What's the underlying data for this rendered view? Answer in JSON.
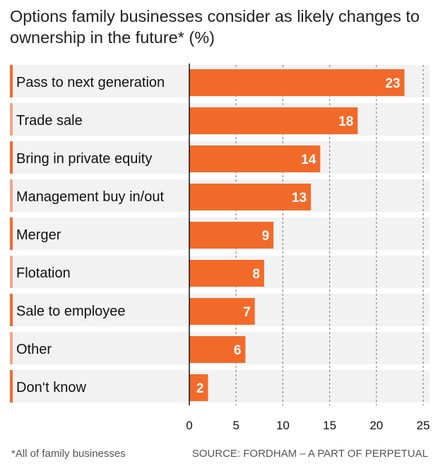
{
  "title": "Options family businesses consider as likely changes to ownership in the future* (%)",
  "footnote": "*All of family businesses",
  "source": "SOURCE: FORDHAM – A PART OF PERPETUAL",
  "colors": {
    "bar": "#f26a2a",
    "stripe": "#f2f2f2",
    "grid": "#888888"
  },
  "chart_data": {
    "type": "bar",
    "orientation": "horizontal",
    "categories": [
      "Pass to next generation",
      "Trade sale",
      "Bring in private equity",
      "Management buy in/out",
      "Merger",
      "Flotation",
      "Sale to employee",
      "Other",
      "Don‘t know"
    ],
    "values": [
      23,
      18,
      14,
      13,
      9,
      8,
      7,
      6,
      2
    ],
    "xticks": [
      0,
      5,
      10,
      15,
      20,
      25
    ],
    "xlim": [
      0,
      25
    ],
    "grid": true
  }
}
